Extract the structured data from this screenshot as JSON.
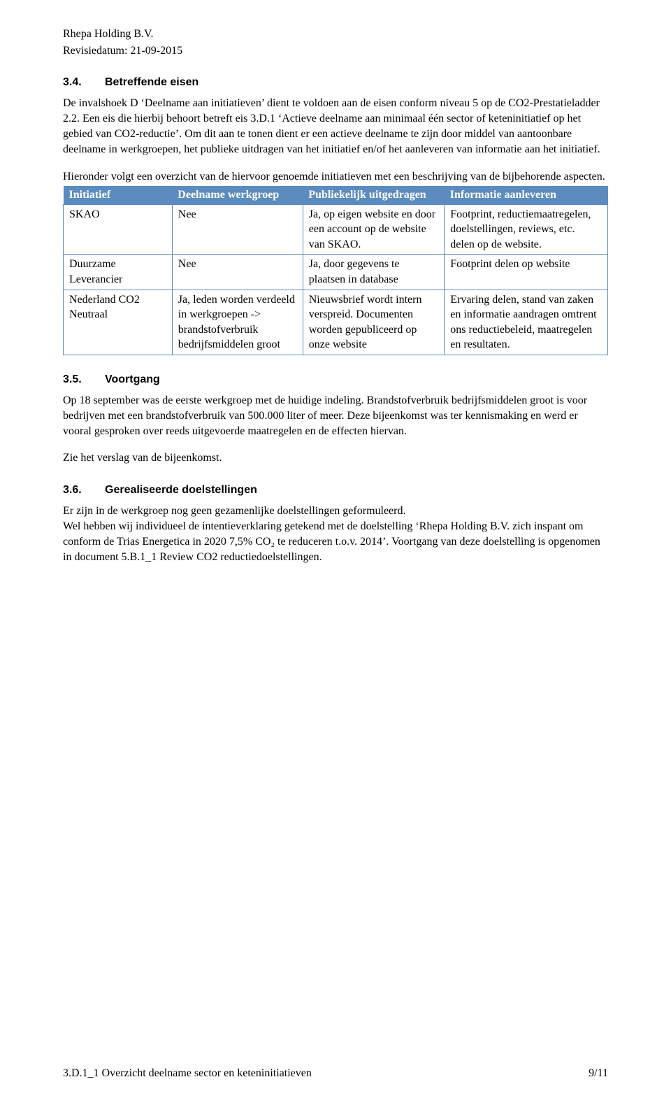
{
  "header": {
    "company": "Rhepa Holding B.V.",
    "revision_label": "Revisiedatum: 21-09-2015"
  },
  "sections": {
    "s34": {
      "number": "3.4.",
      "title": "Betreffende eisen",
      "para1": "De invalshoek D ‘Deelname aan initiatieven’ dient te voldoen aan de eisen conform niveau 5 op de CO2-Prestatieladder 2.2. Een eis die hierbij behoort betreft eis 3.D.1 ‘Actieve deelname aan minimaal één sector of keteninitiatief op het gebied van CO2-reductie’. Om dit aan te tonen dient er een actieve deelname te zijn door middel van aantoonbare deelname in werkgroepen, het publieke uitdragen van het initiatief en/of het aanleveren van informatie aan het initiatief.",
      "para2": "Hieronder volgt een overzicht van de hiervoor genoemde initiatieven met een beschrijving van de bijbehorende aspecten."
    },
    "s35": {
      "number": "3.5.",
      "title": "Voortgang",
      "para1": "Op 18 september was de eerste werkgroep met de huidige indeling. Brandstofverbruik bedrijfsmiddelen groot is voor bedrijven met een brandstofverbruik van 500.000 liter of meer. Deze bijeenkomst was ter kennismaking en werd er vooral gesproken over reeds uitgevoerde maatregelen en de effecten hiervan.",
      "para2": "Zie het verslag van de bijeenkomst."
    },
    "s36": {
      "number": "3.6.",
      "title": "Gerealiseerde doelstellingen",
      "para1": "Er zijn in de werkgroep nog geen gezamenlijke doelstellingen geformuleerd.\nWel hebben wij individueel de intentieverklaring getekend met de doelstelling ‘Rhepa Holding B.V. zich inspant om conform de Trias Energetica in 2020 7,5% CO₂ te reduceren t.o.v. 2014’. Voortgang van deze doelstelling is opgenomen in document 5.B.1_1 Review CO2 reductiedoelstellingen."
    }
  },
  "table": {
    "header_bg": "#5b8bbf",
    "header_fg": "#ffffff",
    "border_color": "#5b8bbf",
    "columns": [
      "Initiatief",
      "Deelname werkgroep",
      "Publiekelijk uitgedragen",
      "Informatie aanleveren"
    ],
    "rows": [
      {
        "c0": "SKAO",
        "c1": "Nee",
        "c2": "Ja, op eigen website en door een account op de website van SKAO.",
        "c3": "Footprint, reductiemaatregelen, doelstellingen, reviews, etc. delen op de website."
      },
      {
        "c0": "Duurzame Leverancier",
        "c1": "Nee",
        "c2": "Ja, door gegevens te plaatsen in database",
        "c3": "Footprint delen op website"
      },
      {
        "c0": "Nederland CO2 Neutraal",
        "c1": "Ja, leden worden verdeeld in werkgroepen -> brandstofverbruik bedrijfsmiddelen groot",
        "c2": "Nieuwsbrief wordt intern verspreid. Documenten worden gepubliceerd op onze website",
        "c3": "Ervaring delen, stand van zaken en informatie aandragen omtrent ons reductiebeleid, maatregelen en resultaten."
      }
    ]
  },
  "footer": {
    "left": "3.D.1_1 Overzicht deelname sector en keteninitiatieven",
    "right": "9/11"
  }
}
